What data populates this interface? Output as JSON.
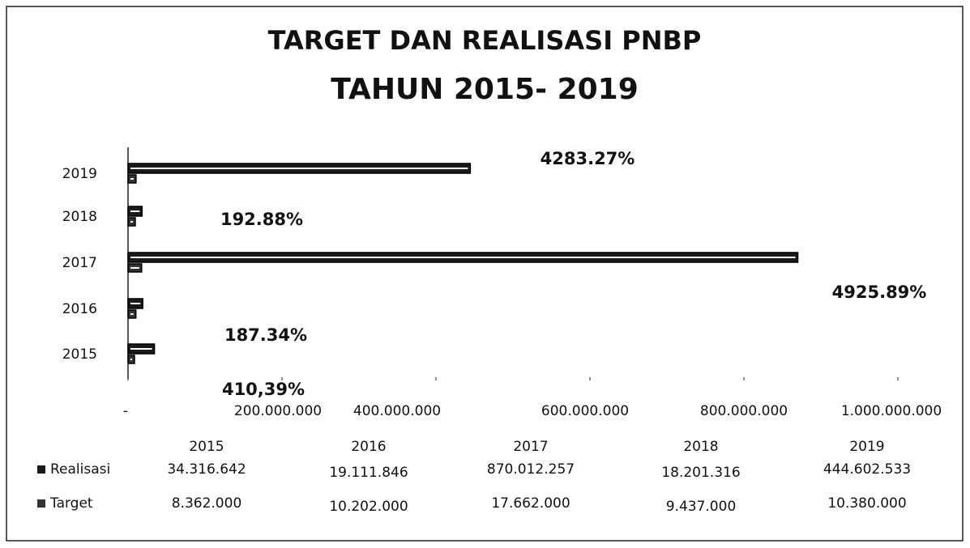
{
  "chart_data": {
    "type": "bar",
    "orientation": "horizontal",
    "title": "TARGET DAN REALISASI PNBP",
    "subtitle": "TAHUN 2015- 2019",
    "categories": [
      "2015",
      "2016",
      "2017",
      "2018",
      "2019"
    ],
    "series": [
      {
        "name": "Realisasi",
        "color": "#1a1a1a",
        "values": [
          34316642,
          19111846,
          870012257,
          18201316,
          444602533
        ],
        "value_labels": [
          "34.316.642",
          "19.111.846",
          "870.012.257",
          "18.201.316",
          "444.602.533"
        ]
      },
      {
        "name": "Target",
        "color": "#333333",
        "values": [
          8362000,
          10202000,
          17662000,
          9437000,
          10380000
        ],
        "value_labels": [
          "8.362.000",
          "10.202.000",
          "17.662.000",
          "9.437.000",
          "10.380.000"
        ]
      }
    ],
    "annotations": [
      "410,39%",
      "187.34%",
      "4925.89%",
      "192.88%",
      "4283.27%"
    ],
    "xlim": [
      0,
      1000000000
    ],
    "xticks": [
      {
        "value": 0,
        "label": "-"
      },
      {
        "value": 200000000,
        "label": "200.000.000"
      },
      {
        "value": 400000000,
        "label": "400.000.000"
      },
      {
        "value": 600000000,
        "label": "600.000.000"
      },
      {
        "value": 800000000,
        "label": "800.000.000"
      },
      {
        "value": 1000000000,
        "label": "1.000.000.000"
      }
    ],
    "grid": false
  }
}
